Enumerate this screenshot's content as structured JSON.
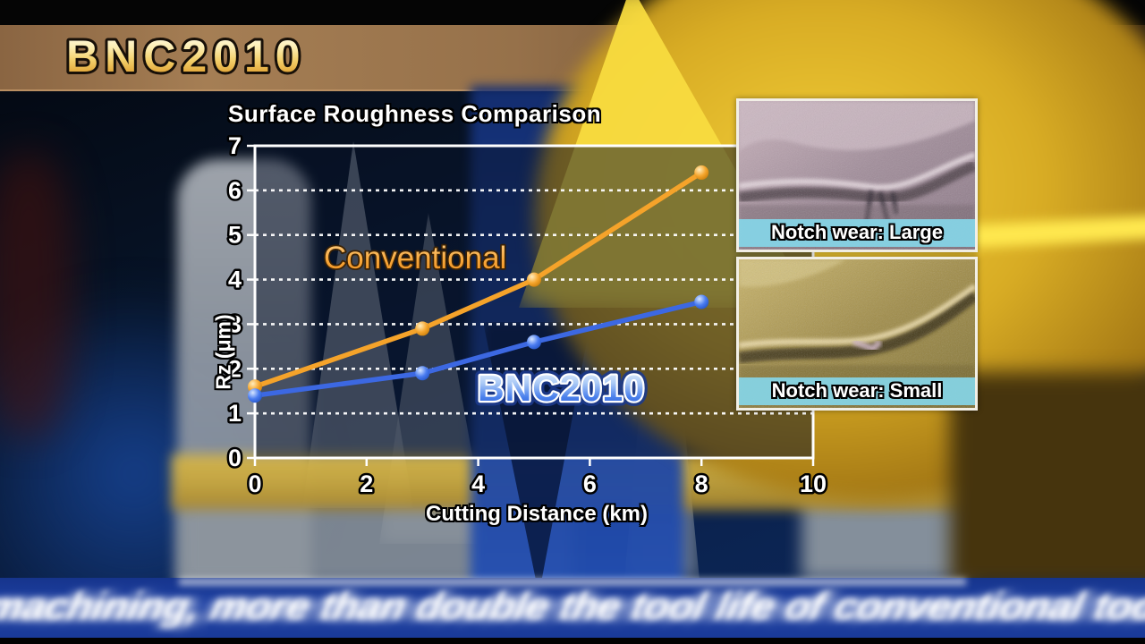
{
  "header": {
    "brand": "BNC2010"
  },
  "chart_data": {
    "type": "line",
    "title": "Surface Roughness Comparison",
    "xlabel": "Cutting Distance (km)",
    "ylabel": "Rz (μm)",
    "xlim": [
      0,
      10
    ],
    "ylim": [
      0,
      7
    ],
    "xticks": [
      0,
      2,
      4,
      6,
      8,
      10
    ],
    "yticks": [
      0,
      1,
      2,
      3,
      4,
      5,
      6,
      7
    ],
    "grid": "horizontal white dotted lines at y=1..6",
    "legend_position": "inline labels on plot",
    "series": [
      {
        "name": "Conventional",
        "color": "#f5a32a",
        "marker_gradient": [
          "#ffedbe",
          "#f6a62e",
          "#c87c08"
        ],
        "x": [
          0,
          3,
          5,
          8
        ],
        "values": [
          1.6,
          2.9,
          4.0,
          6.4
        ]
      },
      {
        "name": "BNC2010",
        "color": "#3c68e2",
        "marker_gradient": [
          "#d6e6ff",
          "#4a7cf0",
          "#2252c4"
        ],
        "x": [
          0,
          3,
          5,
          8
        ],
        "values": [
          1.4,
          1.9,
          2.6,
          3.5
        ]
      }
    ]
  },
  "insets": [
    {
      "caption": "Notch wear: Large"
    },
    {
      "caption": "Notch wear: Small"
    }
  ],
  "footer": {
    "caption": "machining, more than double the tool life of conventional tools"
  },
  "colors": {
    "axis": "#ffffff",
    "plot_overlay": "rgba(7,18,40,0.5)",
    "caption_bar": "#87d8ea",
    "footer_band": "#1e41a4",
    "header_bar": "#96714a",
    "brand_gold_top": "#fffbe8",
    "brand_gold_bottom": "#d89828"
  }
}
